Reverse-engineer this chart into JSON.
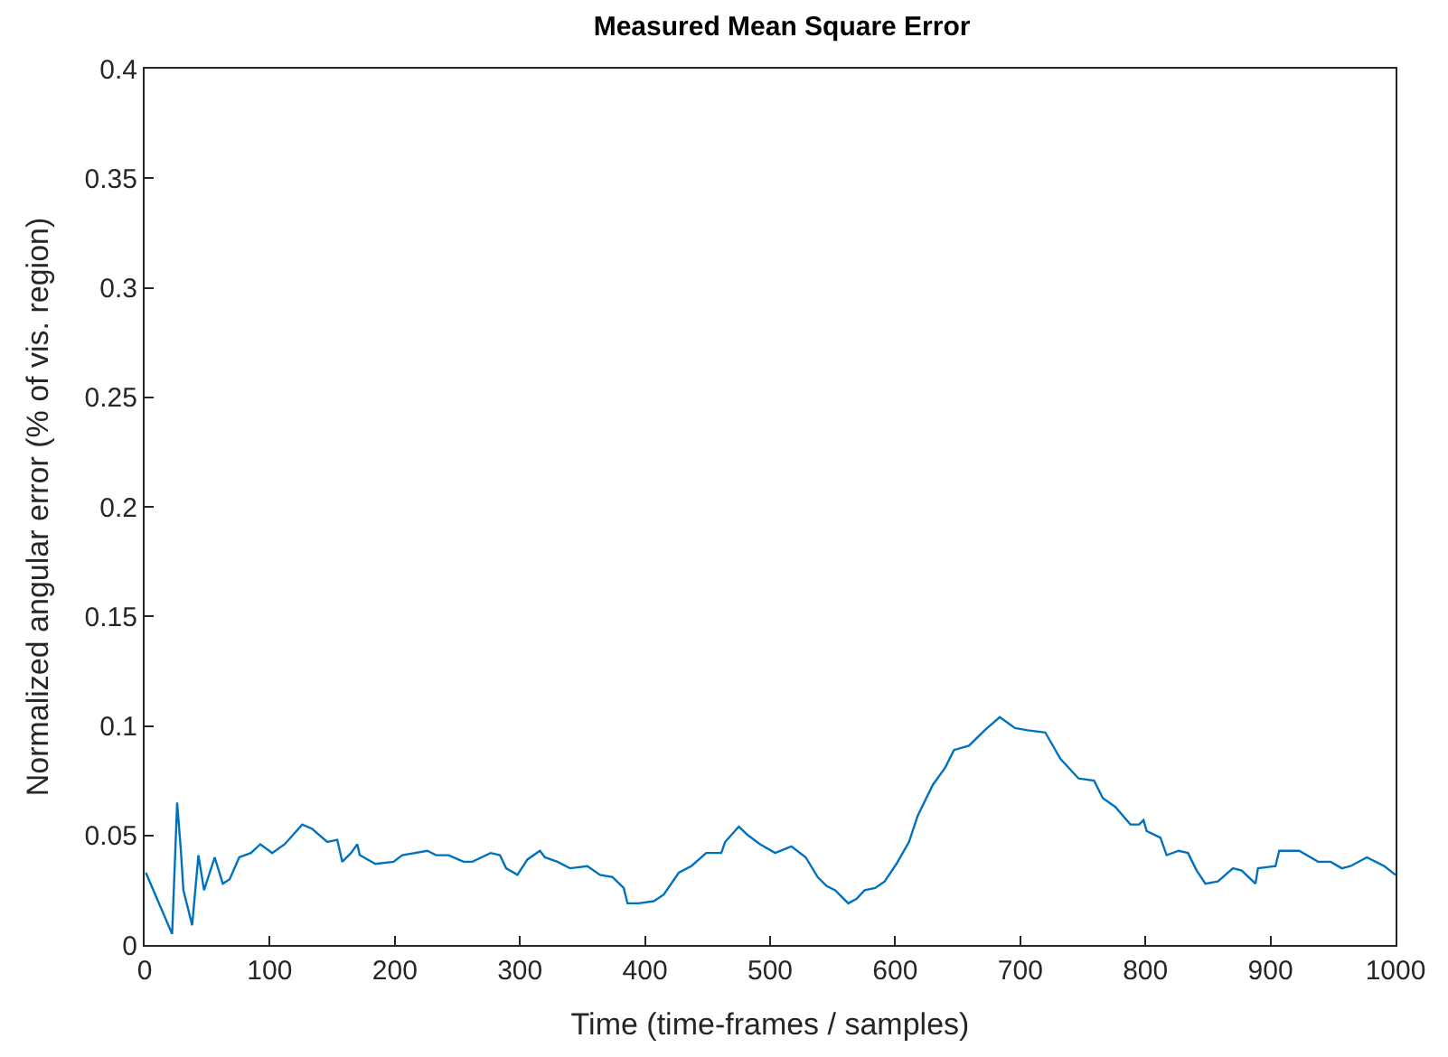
{
  "chart_data": {
    "type": "line",
    "title": "Measured Mean Square Error",
    "xlabel": "Time (time-frames / samples)",
    "ylabel": "Normalized angular error (% of vis. region)",
    "xlim": [
      0,
      1000
    ],
    "xticks": [
      0,
      100,
      200,
      300,
      400,
      500,
      600,
      700,
      800,
      900,
      1000
    ],
    "ylim": [
      0,
      0.4
    ],
    "yticks": [
      0,
      0.05,
      0.1,
      0.15,
      0.2,
      0.25,
      0.3,
      0.35,
      0.4
    ],
    "grid": false,
    "marker": "none",
    "line_style": "solid",
    "series": [
      {
        "color": "#0072bd",
        "x": [
          1,
          22,
          26,
          29,
          31,
          38,
          43,
          47.5,
          56,
          62.5,
          68,
          75.6,
          85,
          92.5,
          102,
          112,
          126,
          134,
          146,
          154,
          158,
          165,
          170,
          172,
          184.5,
          199,
          206,
          226,
          233,
          243,
          255,
          262,
          276.6,
          284,
          289,
          298,
          306,
          316,
          320,
          330,
          340,
          354,
          364,
          374,
          383,
          386,
          395,
          407,
          415,
          427,
          437,
          449,
          461,
          464,
          475,
          482.5,
          492,
          504,
          517,
          528.5,
          538,
          545,
          552,
          562.5,
          569,
          575.6,
          584,
          591.6,
          601,
          611,
          618,
          630,
          640,
          647,
          659,
          671.5,
          683.6,
          695.8,
          706,
          720,
          732,
          746.6,
          759,
          766,
          776,
          788,
          795,
          798.5,
          801,
          812,
          817,
          826.6,
          834,
          841,
          848,
          858,
          870,
          877,
          888,
          890,
          904,
          907,
          923,
          938,
          948,
          957,
          964,
          977,
          991,
          1000
        ],
        "values": [
          0.033,
          0.005,
          0.065,
          0.043,
          0.025,
          0.009,
          0.041,
          0.025,
          0.04,
          0.028,
          0.03,
          0.04,
          0.042,
          0.046,
          0.042,
          0.046,
          0.055,
          0.053,
          0.047,
          0.048,
          0.038,
          0.042,
          0.046,
          0.041,
          0.037,
          0.038,
          0.041,
          0.043,
          0.041,
          0.041,
          0.038,
          0.038,
          0.042,
          0.041,
          0.035,
          0.032,
          0.039,
          0.043,
          0.04,
          0.038,
          0.035,
          0.036,
          0.032,
          0.031,
          0.026,
          0.019,
          0.019,
          0.02,
          0.023,
          0.033,
          0.036,
          0.042,
          0.042,
          0.047,
          0.054,
          0.05,
          0.046,
          0.042,
          0.045,
          0.04,
          0.031,
          0.027,
          0.025,
          0.019,
          0.021,
          0.025,
          0.026,
          0.029,
          0.037,
          0.047,
          0.059,
          0.073,
          0.081,
          0.089,
          0.091,
          0.098,
          0.104,
          0.099,
          0.098,
          0.097,
          0.085,
          0.076,
          0.075,
          0.067,
          0.063,
          0.055,
          0.055,
          0.057,
          0.052,
          0.049,
          0.041,
          0.043,
          0.042,
          0.034,
          0.028,
          0.029,
          0.035,
          0.034,
          0.028,
          0.035,
          0.036,
          0.043,
          0.043,
          0.038,
          0.038,
          0.035,
          0.036,
          0.04,
          0.036,
          0.032
        ]
      }
    ]
  }
}
